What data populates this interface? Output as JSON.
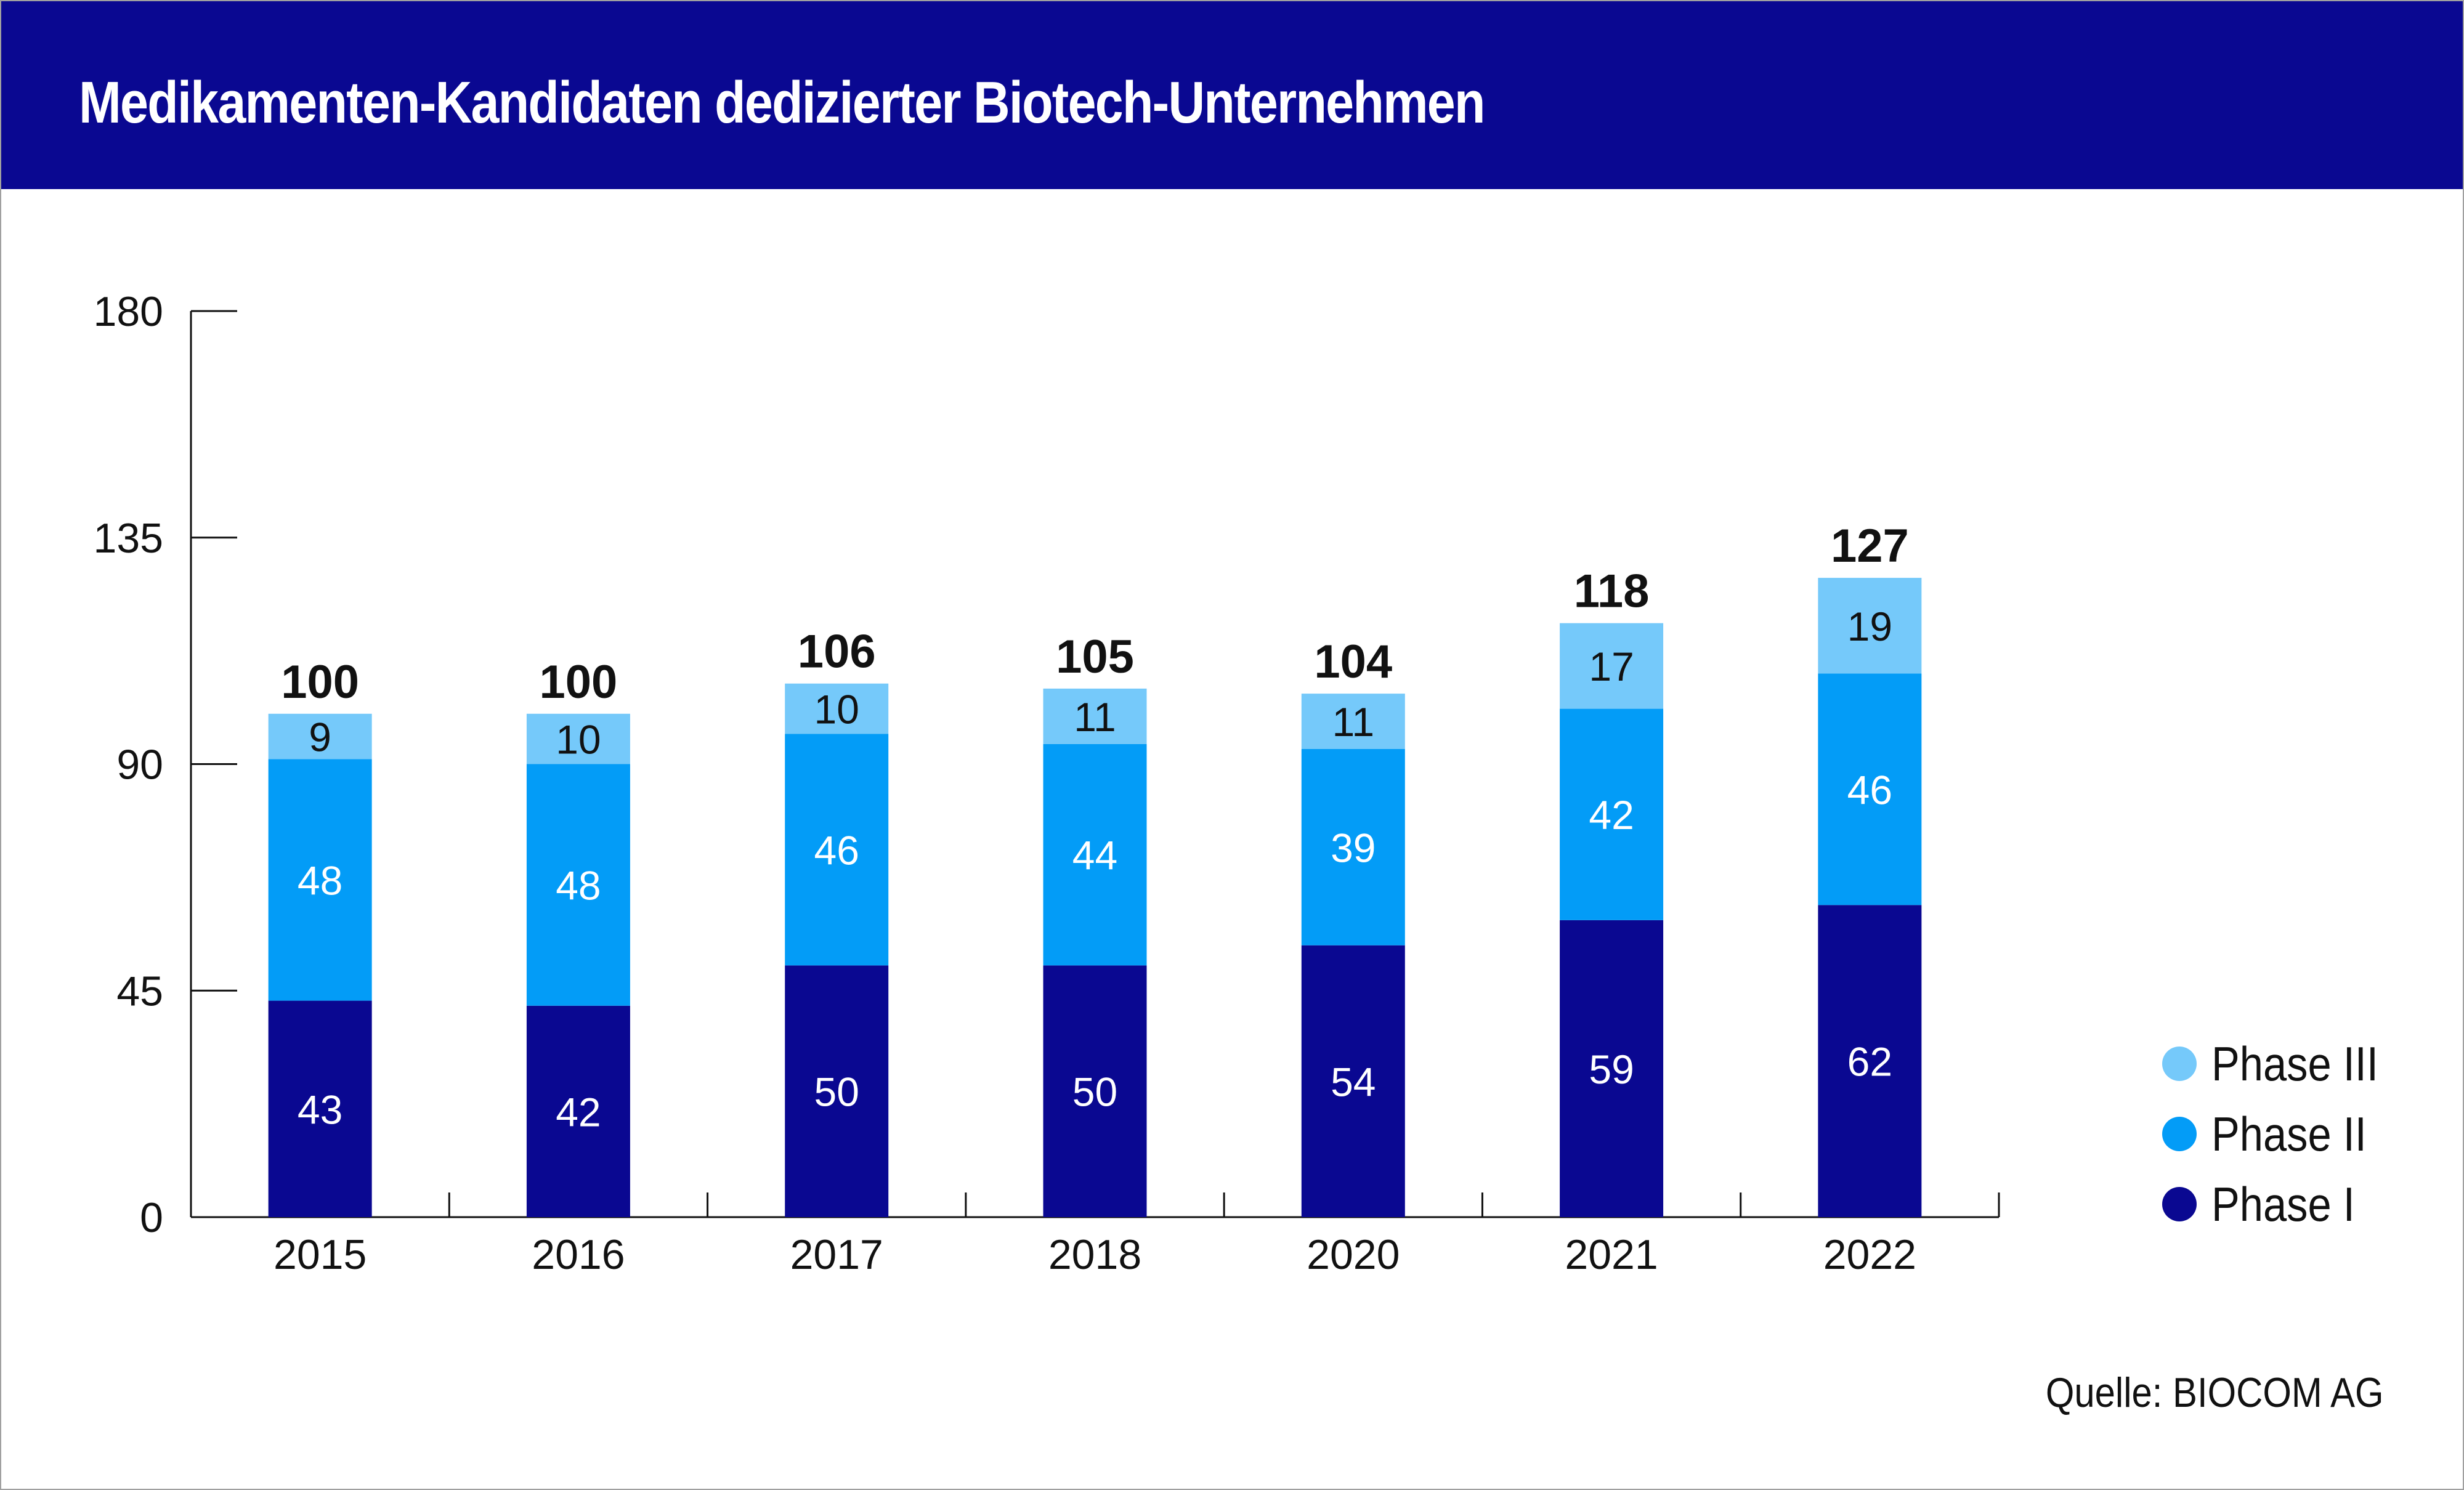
{
  "header": {
    "title": "Medikamenten-Kandidaten dedizierter Biotech-Unternehmen"
  },
  "source": "Quelle: BIOCOM AG",
  "colors": {
    "header_bg": "#0a0891",
    "phase_1": "#0a0891",
    "phase_2": "#039cf7",
    "phase_3": "#75c9fa"
  },
  "chart_data": {
    "type": "bar",
    "stacked": true,
    "title": "Medikamenten-Kandidaten dedizierter Biotech-Unternehmen",
    "xlabel": "",
    "ylabel": "",
    "categories": [
      "2015",
      "2016",
      "2017",
      "2018",
      "2020",
      "2021",
      "2022"
    ],
    "series": [
      {
        "name": "Phase I",
        "color": "#0a0891",
        "values": [
          43,
          42,
          50,
          50,
          54,
          59,
          62
        ]
      },
      {
        "name": "Phase II",
        "color": "#039cf7",
        "values": [
          48,
          48,
          46,
          44,
          39,
          42,
          46
        ]
      },
      {
        "name": "Phase III",
        "color": "#75c9fa",
        "values": [
          9,
          10,
          10,
          11,
          11,
          17,
          19
        ]
      }
    ],
    "totals": [
      100,
      100,
      106,
      105,
      104,
      118,
      127
    ],
    "ylim": [
      0,
      180
    ],
    "yticks": [
      0,
      45,
      90,
      135,
      180
    ],
    "grid": false,
    "legend_position": "right"
  },
  "legend": [
    {
      "label": "Phase III",
      "color": "#75c9fa"
    },
    {
      "label": "Phase II",
      "color": "#039cf7"
    },
    {
      "label": "Phase I",
      "color": "#0a0891"
    }
  ]
}
